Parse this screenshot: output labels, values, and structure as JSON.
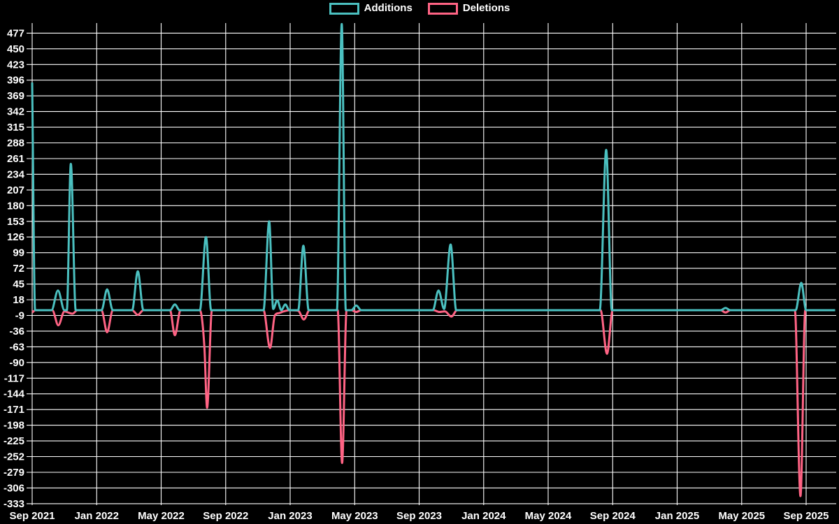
{
  "chart_data": {
    "type": "line",
    "title": "",
    "background": "#000000",
    "grid_color": "#ffffff",
    "text_color": "#ffffff",
    "legend": [
      {
        "label": "Additions",
        "color": "#4bc0c0"
      },
      {
        "label": "Deletions",
        "color": "#ff6384"
      }
    ],
    "x_axis": {
      "tick_labels": [
        "Sep 2021",
        "Jan 2022",
        "May 2022",
        "Sep 2022",
        "Jan 2023",
        "May 2023",
        "Sep 2023",
        "Jan 2024",
        "May 2024",
        "Sep 2024",
        "Jan 2025",
        "May 2025",
        "Sep 2025"
      ],
      "tick_interval_months": 4,
      "range_months": [
        0,
        49.8
      ]
    },
    "y_axis": {
      "tick_labels": [
        477,
        450,
        423,
        396,
        369,
        342,
        315,
        288,
        261,
        234,
        207,
        180,
        153,
        126,
        99,
        72,
        45,
        18,
        -9,
        -36,
        -63,
        -90,
        -117,
        -144,
        -171,
        -198,
        -225,
        -252,
        -279,
        -306,
        -333
      ],
      "tick_step": 27,
      "max_tick": 477,
      "min_tick": -333
    },
    "series": [
      {
        "name": "Additions",
        "color": "#4bc0c0",
        "points": [
          [
            0,
            392
          ],
          [
            0.18,
            0
          ],
          [
            1.2,
            0
          ],
          [
            1.6,
            34
          ],
          [
            2.0,
            0
          ],
          [
            2.15,
            0
          ],
          [
            2.4,
            252
          ],
          [
            2.7,
            0
          ],
          [
            4.3,
            0
          ],
          [
            4.65,
            36
          ],
          [
            5.0,
            0
          ],
          [
            6.2,
            0
          ],
          [
            6.55,
            67
          ],
          [
            6.9,
            0
          ],
          [
            8.55,
            0
          ],
          [
            8.85,
            10
          ],
          [
            9.15,
            0
          ],
          [
            10.4,
            0
          ],
          [
            10.78,
            126
          ],
          [
            11.1,
            0
          ],
          [
            14.35,
            0
          ],
          [
            14.7,
            153
          ],
          [
            14.95,
            2
          ],
          [
            15.2,
            17
          ],
          [
            15.45,
            0
          ],
          [
            15.7,
            10
          ],
          [
            15.95,
            0
          ],
          [
            16.5,
            0
          ],
          [
            16.82,
            111
          ],
          [
            17.15,
            0
          ],
          [
            18.9,
            0
          ],
          [
            19.2,
            493
          ],
          [
            19.45,
            0
          ],
          [
            19.8,
            0
          ],
          [
            20.1,
            8
          ],
          [
            20.4,
            0
          ],
          [
            24.85,
            0
          ],
          [
            25.2,
            34
          ],
          [
            25.55,
            2
          ],
          [
            25.95,
            113
          ],
          [
            26.3,
            0
          ],
          [
            35.2,
            0
          ],
          [
            35.6,
            276
          ],
          [
            35.95,
            0
          ],
          [
            42.7,
            0
          ],
          [
            43.0,
            4
          ],
          [
            43.3,
            0
          ],
          [
            47.35,
            0
          ],
          [
            47.7,
            47
          ],
          [
            48.0,
            0
          ],
          [
            49.8,
            0
          ]
        ]
      },
      {
        "name": "Deletions",
        "color": "#ff6384",
        "points": [
          [
            0,
            -4
          ],
          [
            0.2,
            0
          ],
          [
            1.25,
            0
          ],
          [
            1.62,
            -26
          ],
          [
            2.0,
            -2
          ],
          [
            2.5,
            -6
          ],
          [
            2.8,
            0
          ],
          [
            4.3,
            0
          ],
          [
            4.65,
            -38
          ],
          [
            5.0,
            0
          ],
          [
            6.2,
            0
          ],
          [
            6.55,
            -8
          ],
          [
            6.9,
            0
          ],
          [
            8.55,
            0
          ],
          [
            8.85,
            -43
          ],
          [
            9.2,
            0
          ],
          [
            10.4,
            0
          ],
          [
            10.68,
            -63
          ],
          [
            10.85,
            -168
          ],
          [
            11.15,
            0
          ],
          [
            14.35,
            0
          ],
          [
            14.75,
            -65
          ],
          [
            15.05,
            -9
          ],
          [
            15.3,
            -5
          ],
          [
            15.6,
            -2
          ],
          [
            15.95,
            0
          ],
          [
            16.5,
            -1
          ],
          [
            16.85,
            -16
          ],
          [
            17.2,
            0
          ],
          [
            18.95,
            0
          ],
          [
            19.22,
            -263
          ],
          [
            19.5,
            0
          ],
          [
            19.8,
            0
          ],
          [
            20.1,
            -3
          ],
          [
            20.4,
            0
          ],
          [
            24.9,
            0
          ],
          [
            25.25,
            -3
          ],
          [
            25.6,
            -2
          ],
          [
            26.0,
            -11
          ],
          [
            26.35,
            0
          ],
          [
            35.25,
            0
          ],
          [
            35.65,
            -75
          ],
          [
            36.0,
            0
          ],
          [
            42.7,
            0
          ],
          [
            43.0,
            -4
          ],
          [
            43.3,
            0
          ],
          [
            47.3,
            0
          ],
          [
            47.65,
            -320
          ],
          [
            47.95,
            0
          ],
          [
            49.8,
            0
          ]
        ]
      }
    ]
  }
}
